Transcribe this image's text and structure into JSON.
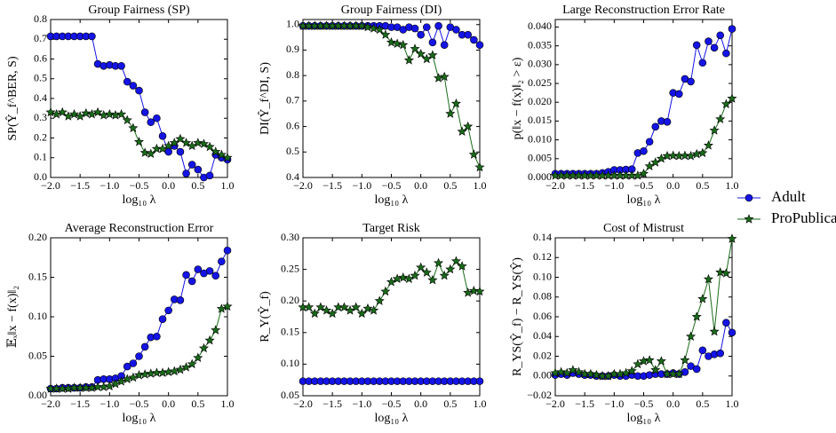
{
  "chart_data": [
    {
      "type": "line",
      "title": "Group Fairness (SP)",
      "xlabel": "log₁₀ λ",
      "ylabel": "SP(Ŷ_f^BER, S)",
      "x": [
        -2,
        -1.9,
        -1.8,
        -1.7,
        -1.6,
        -1.5,
        -1.4,
        -1.3,
        -1.2,
        -1.1,
        -1,
        -0.9,
        -0.8,
        -0.7,
        -0.6,
        -0.5,
        -0.4,
        -0.3,
        -0.2,
        -0.1,
        0,
        0.1,
        0.2,
        0.3,
        0.4,
        0.5,
        0.6,
        0.7,
        0.8,
        0.9,
        1
      ],
      "xlim": [
        -2,
        1
      ],
      "xticks": [
        {
          "value": -2,
          "label": "−2.0"
        },
        {
          "value": -1.5,
          "label": "−1.5"
        },
        {
          "value": -1,
          "label": "−1.0"
        },
        {
          "value": -0.5,
          "label": "−0.5"
        },
        {
          "value": 0,
          "label": "0.0"
        },
        0.5,
        {
          "value": 1,
          "label": "1.0"
        }
      ],
      "ylim": [
        0,
        0.8
      ],
      "yticks": [
        {
          "value": 0,
          "label": "0.0"
        },
        0.1,
        0.2,
        0.3,
        0.4,
        0.5,
        0.6,
        0.7,
        0.8
      ],
      "series": [
        {
          "name": "Adult",
          "color": "#1414e6",
          "marker": "circle",
          "values": [
            0.715,
            0.715,
            0.715,
            0.715,
            0.715,
            0.715,
            0.715,
            0.715,
            0.575,
            0.565,
            0.57,
            0.565,
            0.565,
            0.485,
            0.465,
            0.44,
            0.33,
            0.28,
            0.3,
            0.21,
            0.13,
            0.16,
            0.13,
            0.02,
            0.065,
            0.04,
            0,
            0.01,
            0.115,
            0.1,
            0.09
          ]
        },
        {
          "name": "ProPublica",
          "color": "#1a6b1a",
          "marker": "star",
          "values": [
            0.33,
            0.32,
            0.33,
            0.31,
            0.32,
            0.31,
            0.325,
            0.32,
            0.33,
            0.315,
            0.32,
            0.315,
            0.32,
            0.29,
            0.25,
            0.18,
            0.125,
            0.12,
            0.145,
            0.145,
            0.16,
            0.175,
            0.195,
            0.175,
            0.16,
            0.175,
            0.17,
            0.155,
            0.13,
            0.115,
            0.1
          ]
        }
      ]
    },
    {
      "type": "line",
      "title": "Group Fairness (DI)",
      "xlabel": "log₁₀ λ",
      "ylabel": "DI(Ŷ_f^DI, S)",
      "x": [
        -2,
        -1.9,
        -1.8,
        -1.7,
        -1.6,
        -1.5,
        -1.4,
        -1.3,
        -1.2,
        -1.1,
        -1,
        -0.9,
        -0.8,
        -0.7,
        -0.6,
        -0.5,
        -0.4,
        -0.3,
        -0.2,
        -0.1,
        0,
        0.1,
        0.2,
        0.3,
        0.4,
        0.5,
        0.6,
        0.7,
        0.8,
        0.9,
        1
      ],
      "xlim": [
        -2,
        1
      ],
      "xticks": [
        {
          "value": -2,
          "label": "−2.0"
        },
        {
          "value": -1.5,
          "label": "−1.5"
        },
        {
          "value": -1,
          "label": "−1.0"
        },
        {
          "value": -0.5,
          "label": "−0.5"
        },
        {
          "value": 0,
          "label": "0.0"
        },
        0.5,
        {
          "value": 1,
          "label": "1.0"
        }
      ],
      "ylim": [
        0.4,
        1.02
      ],
      "yticks": [
        0.4,
        0.5,
        0.6,
        0.7,
        0.8,
        0.9,
        {
          "value": 1,
          "label": "1.0"
        }
      ],
      "series": [
        {
          "name": "Adult",
          "color": "#1414e6",
          "marker": "circle",
          "values": [
            0.995,
            0.995,
            0.995,
            0.995,
            0.995,
            0.995,
            0.995,
            0.995,
            0.995,
            0.995,
            0.995,
            0.995,
            0.995,
            0.995,
            0.995,
            0.99,
            0.99,
            0.98,
            0.99,
            0.985,
            0.96,
            0.99,
            0.93,
            0.995,
            0.92,
            0.99,
            0.98,
            0.96,
            0.96,
            0.94,
            0.92
          ]
        },
        {
          "name": "ProPublica",
          "color": "#1a6b1a",
          "marker": "star",
          "values": [
            0.995,
            0.995,
            0.995,
            0.995,
            0.995,
            0.995,
            0.995,
            0.995,
            0.995,
            0.995,
            0.995,
            0.99,
            0.985,
            0.98,
            0.96,
            0.93,
            0.925,
            0.92,
            0.86,
            0.905,
            0.885,
            0.865,
            0.88,
            0.79,
            0.795,
            0.65,
            0.69,
            0.58,
            0.6,
            0.49,
            0.44
          ]
        }
      ]
    },
    {
      "type": "line",
      "title": "Large Reconstruction Error Rate",
      "xlabel": "log₁₀ λ",
      "ylabel": "p(‖x − f(x)‖₂ > ε)",
      "legend": "right",
      "x": [
        -2,
        -1.9,
        -1.8,
        -1.7,
        -1.6,
        -1.5,
        -1.4,
        -1.3,
        -1.2,
        -1.1,
        -1,
        -0.9,
        -0.8,
        -0.7,
        -0.6,
        -0.5,
        -0.4,
        -0.3,
        -0.2,
        -0.1,
        0,
        0.1,
        0.2,
        0.3,
        0.4,
        0.5,
        0.6,
        0.7,
        0.8,
        0.9,
        1
      ],
      "xlim": [
        -2,
        1
      ],
      "xticks": [
        {
          "value": -2,
          "label": "−2.0"
        },
        {
          "value": -1.5,
          "label": "−1.5"
        },
        {
          "value": -1,
          "label": "−1.0"
        },
        {
          "value": -0.5,
          "label": "−0.5"
        },
        {
          "value": 0,
          "label": "0.0"
        },
        0.5,
        {
          "value": 1,
          "label": "1.0"
        }
      ],
      "ylim": [
        0,
        0.042
      ],
      "yticks": [
        {
          "value": 0,
          "label": "0.000"
        },
        {
          "value": 0.005,
          "label": "0.005"
        },
        {
          "value": 0.01,
          "label": "0.010"
        },
        {
          "value": 0.015,
          "label": "0.015"
        },
        {
          "value": 0.02,
          "label": "0.020"
        },
        {
          "value": 0.025,
          "label": "0.025"
        },
        {
          "value": 0.03,
          "label": "0.030"
        },
        {
          "value": 0.035,
          "label": "0.035"
        },
        {
          "value": 0.04,
          "label": "0.040"
        }
      ],
      "series": [
        {
          "name": "Adult",
          "color": "#1414e6",
          "marker": "circle",
          "values": [
            0.001,
            0.001,
            0.001,
            0.001,
            0.001,
            0.001,
            0.001,
            0.001,
            0.0012,
            0.0015,
            0.002,
            0.002,
            0.0021,
            0.0022,
            0.0065,
            0.007,
            0.0095,
            0.0135,
            0.015,
            0.0148,
            0.0225,
            0.0222,
            0.0262,
            0.0255,
            0.0352,
            0.0305,
            0.0362,
            0.0345,
            0.0378,
            0.033,
            0.0395
          ]
        },
        {
          "name": "ProPublica",
          "color": "#1a6b1a",
          "marker": "star",
          "values": [
            0.0005,
            0.0005,
            0.0005,
            0.0005,
            0.0005,
            0.0005,
            0.0005,
            0.0005,
            0.0005,
            0.0005,
            0.0005,
            0.0005,
            0.0005,
            0.0005,
            0.0005,
            0.001,
            0.003,
            0.004,
            0.005,
            0.0057,
            0.0058,
            0.0057,
            0.0058,
            0.0057,
            0.0062,
            0.0065,
            0.0085,
            0.0125,
            0.0155,
            0.0195,
            0.021
          ]
        }
      ]
    },
    {
      "type": "line",
      "title": "Average Reconstruction Error",
      "xlabel": "log₁₀ λ",
      "ylabel": "𝔼ₓ‖x − f(x)‖₂",
      "x": [
        -2,
        -1.9,
        -1.8,
        -1.7,
        -1.6,
        -1.5,
        -1.4,
        -1.3,
        -1.2,
        -1.1,
        -1,
        -0.9,
        -0.8,
        -0.7,
        -0.6,
        -0.5,
        -0.4,
        -0.3,
        -0.2,
        -0.1,
        0,
        0.1,
        0.2,
        0.3,
        0.4,
        0.5,
        0.6,
        0.7,
        0.8,
        0.9,
        1
      ],
      "xlim": [
        -2,
        1
      ],
      "xticks": [
        {
          "value": -2,
          "label": "−2.0"
        },
        {
          "value": -1.5,
          "label": "−1.5"
        },
        {
          "value": -1,
          "label": "−1.0"
        },
        {
          "value": -0.5,
          "label": "−0.5"
        },
        {
          "value": 0,
          "label": "0.0"
        },
        0.5,
        {
          "value": 1,
          "label": "1.0"
        }
      ],
      "ylim": [
        0,
        0.2
      ],
      "yticks": [
        {
          "value": 0,
          "label": "0.00"
        },
        0.05,
        {
          "value": 0.1,
          "label": "0.10"
        },
        0.15,
        {
          "value": 0.2,
          "label": "0.20"
        }
      ],
      "series": [
        {
          "name": "Adult",
          "color": "#1414e6",
          "marker": "circle",
          "values": [
            0.009,
            0.009,
            0.01,
            0.01,
            0.01,
            0.01,
            0.011,
            0.011,
            0.02,
            0.021,
            0.021,
            0.022,
            0.025,
            0.037,
            0.041,
            0.05,
            0.062,
            0.074,
            0.075,
            0.097,
            0.108,
            0.122,
            0.121,
            0.153,
            0.145,
            0.16,
            0.155,
            0.158,
            0.152,
            0.17,
            0.184
          ]
        },
        {
          "name": "ProPublica",
          "color": "#1a6b1a",
          "marker": "star",
          "values": [
            0.009,
            0.009,
            0.009,
            0.009,
            0.01,
            0.01,
            0.01,
            0.01,
            0.011,
            0.011,
            0.012,
            0.015,
            0.018,
            0.021,
            0.023,
            0.026,
            0.027,
            0.028,
            0.029,
            0.029,
            0.03,
            0.031,
            0.033,
            0.036,
            0.04,
            0.048,
            0.06,
            0.07,
            0.083,
            0.11,
            0.113
          ]
        }
      ]
    },
    {
      "type": "line",
      "title": "Target Risk",
      "xlabel": "log₁₀ λ",
      "ylabel": "R_Y(Ŷ_f)",
      "x": [
        -2,
        -1.9,
        -1.8,
        -1.7,
        -1.6,
        -1.5,
        -1.4,
        -1.3,
        -1.2,
        -1.1,
        -1,
        -0.9,
        -0.8,
        -0.7,
        -0.6,
        -0.5,
        -0.4,
        -0.3,
        -0.2,
        -0.1,
        0,
        0.1,
        0.2,
        0.3,
        0.4,
        0.5,
        0.6,
        0.7,
        0.8,
        0.9,
        1
      ],
      "xlim": [
        -2,
        1
      ],
      "xticks": [
        {
          "value": -2,
          "label": "−2.0"
        },
        {
          "value": -1.5,
          "label": "−1.5"
        },
        {
          "value": -1,
          "label": "−1.0"
        },
        {
          "value": -0.5,
          "label": "−0.5"
        },
        {
          "value": 0,
          "label": "0.0"
        },
        0.5,
        {
          "value": 1,
          "label": "1.0"
        }
      ],
      "ylim": [
        0.05,
        0.3
      ],
      "yticks": [
        0.05,
        {
          "value": 0.1,
          "label": "0.10"
        },
        0.15,
        {
          "value": 0.2,
          "label": "0.20"
        },
        0.25,
        {
          "value": 0.3,
          "label": "0.30"
        }
      ],
      "series": [
        {
          "name": "Adult",
          "color": "#1414e6",
          "marker": "circle",
          "values": [
            0.073,
            0.073,
            0.073,
            0.073,
            0.073,
            0.073,
            0.073,
            0.073,
            0.073,
            0.073,
            0.073,
            0.073,
            0.073,
            0.073,
            0.073,
            0.073,
            0.073,
            0.073,
            0.073,
            0.073,
            0.073,
            0.073,
            0.073,
            0.073,
            0.073,
            0.073,
            0.073,
            0.073,
            0.073,
            0.073,
            0.073
          ]
        },
        {
          "name": "ProPublica",
          "color": "#1a6b1a",
          "marker": "star",
          "values": [
            0.19,
            0.19,
            0.18,
            0.19,
            0.185,
            0.18,
            0.19,
            0.19,
            0.185,
            0.19,
            0.18,
            0.188,
            0.185,
            0.2,
            0.215,
            0.23,
            0.235,
            0.237,
            0.235,
            0.24,
            0.253,
            0.245,
            0.233,
            0.26,
            0.24,
            0.25,
            0.263,
            0.255,
            0.213,
            0.216,
            0.215
          ]
        }
      ]
    },
    {
      "type": "line",
      "title": "Cost of Mistrust",
      "xlabel": "log₁₀ λ",
      "ylabel": "R_YS(Ŷ_f) − R_YS(Ŷ)",
      "x": [
        -2,
        -1.9,
        -1.8,
        -1.7,
        -1.6,
        -1.5,
        -1.4,
        -1.3,
        -1.2,
        -1.1,
        -1,
        -0.9,
        -0.8,
        -0.7,
        -0.6,
        -0.5,
        -0.4,
        -0.3,
        -0.2,
        -0.1,
        0,
        0.1,
        0.2,
        0.3,
        0.4,
        0.5,
        0.6,
        0.7,
        0.8,
        0.9,
        1
      ],
      "xlim": [
        -2,
        1
      ],
      "xticks": [
        {
          "value": -2,
          "label": "−2.0"
        },
        {
          "value": -1.5,
          "label": "−1.5"
        },
        {
          "value": -1,
          "label": "−1.0"
        },
        {
          "value": -0.5,
          "label": "−0.5"
        },
        {
          "value": 0,
          "label": "0.0"
        },
        0.5,
        {
          "value": 1,
          "label": "1.0"
        }
      ],
      "ylim": [
        -0.02,
        0.14
      ],
      "yticks": [
        {
          "value": -0.02,
          "label": "−0.02"
        },
        {
          "value": 0,
          "label": "0.00"
        },
        0.02,
        0.04,
        0.06,
        0.08,
        {
          "value": 0.1,
          "label": "0.10"
        },
        0.12,
        0.14
      ],
      "series": [
        {
          "name": "Adult",
          "color": "#1414e6",
          "marker": "circle",
          "values": [
            0.001,
            0.002,
            0.001,
            0.003,
            0.002,
            0.001,
            0.001,
            0,
            0,
            0,
            0.001,
            0,
            0,
            0.001,
            0,
            0,
            0.001,
            0.002,
            0.002,
            0.002,
            0.003,
            0.002,
            0.004,
            0.01,
            0.007,
            0.026,
            0.02,
            0.022,
            0.023,
            0.054,
            0.044
          ]
        },
        {
          "name": "ProPublica",
          "color": "#1a6b1a",
          "marker": "star",
          "values": [
            0.003,
            0.004,
            0.003,
            0.006,
            0.004,
            0.002,
            0.002,
            0.001,
            0,
            0,
            0.002,
            0.002,
            0.003,
            0.005,
            0.012,
            0.015,
            0.016,
            0.006,
            0.015,
            0.002,
            0.002,
            0.002,
            0.016,
            0.04,
            0.06,
            0.078,
            0.098,
            0.045,
            0.105,
            0.104,
            0.139
          ]
        }
      ]
    }
  ]
}
